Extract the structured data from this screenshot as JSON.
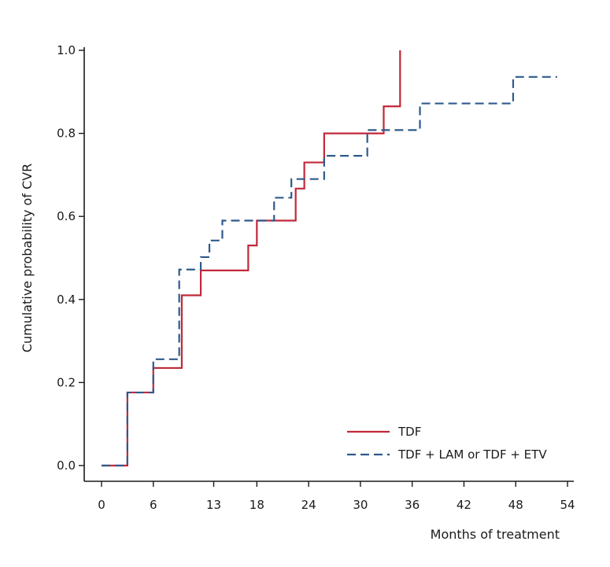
{
  "chart_data": {
    "type": "line",
    "step": true,
    "title": "",
    "xlabel": "Months of treatment",
    "ylabel": "Cumulative probability of CVR",
    "xlim": [
      0,
      54
    ],
    "ylim": [
      0,
      1
    ],
    "xticks": [
      0,
      6,
      13,
      18,
      24,
      30,
      36,
      42,
      48,
      54
    ],
    "yticks": [
      "0.0",
      "0.2",
      "0.4",
      "0.6",
      "0.8",
      "1.0"
    ],
    "grid": false,
    "legend_position": "bottom-right",
    "series": [
      {
        "name": "TDF",
        "color": "#c0283a",
        "style": "solid",
        "x": [
          0,
          3,
          6,
          9,
          9.3,
          11.5,
          15,
          17,
          18,
          22.5,
          23.5,
          25.8,
          32.7,
          34.6,
          34.6
        ],
        "y": [
          0,
          0.176,
          0.235,
          0.235,
          0.41,
          0.47,
          0.47,
          0.53,
          0.59,
          0.667,
          0.73,
          0.8,
          0.865,
          0.93,
          1.0
        ]
      },
      {
        "name": "TDF + LAM or TDF + ETV",
        "color": "#2e5a8c",
        "style": "dashed",
        "x": [
          0,
          3,
          6,
          9,
          11.5,
          12.5,
          14,
          20,
          22,
          25.8,
          30.8,
          36.9,
          47.7,
          52.8
        ],
        "y": [
          0,
          0.176,
          0.256,
          0.472,
          0.502,
          0.542,
          0.59,
          0.645,
          0.69,
          0.746,
          0.808,
          0.872,
          0.936,
          0.936
        ]
      }
    ]
  }
}
